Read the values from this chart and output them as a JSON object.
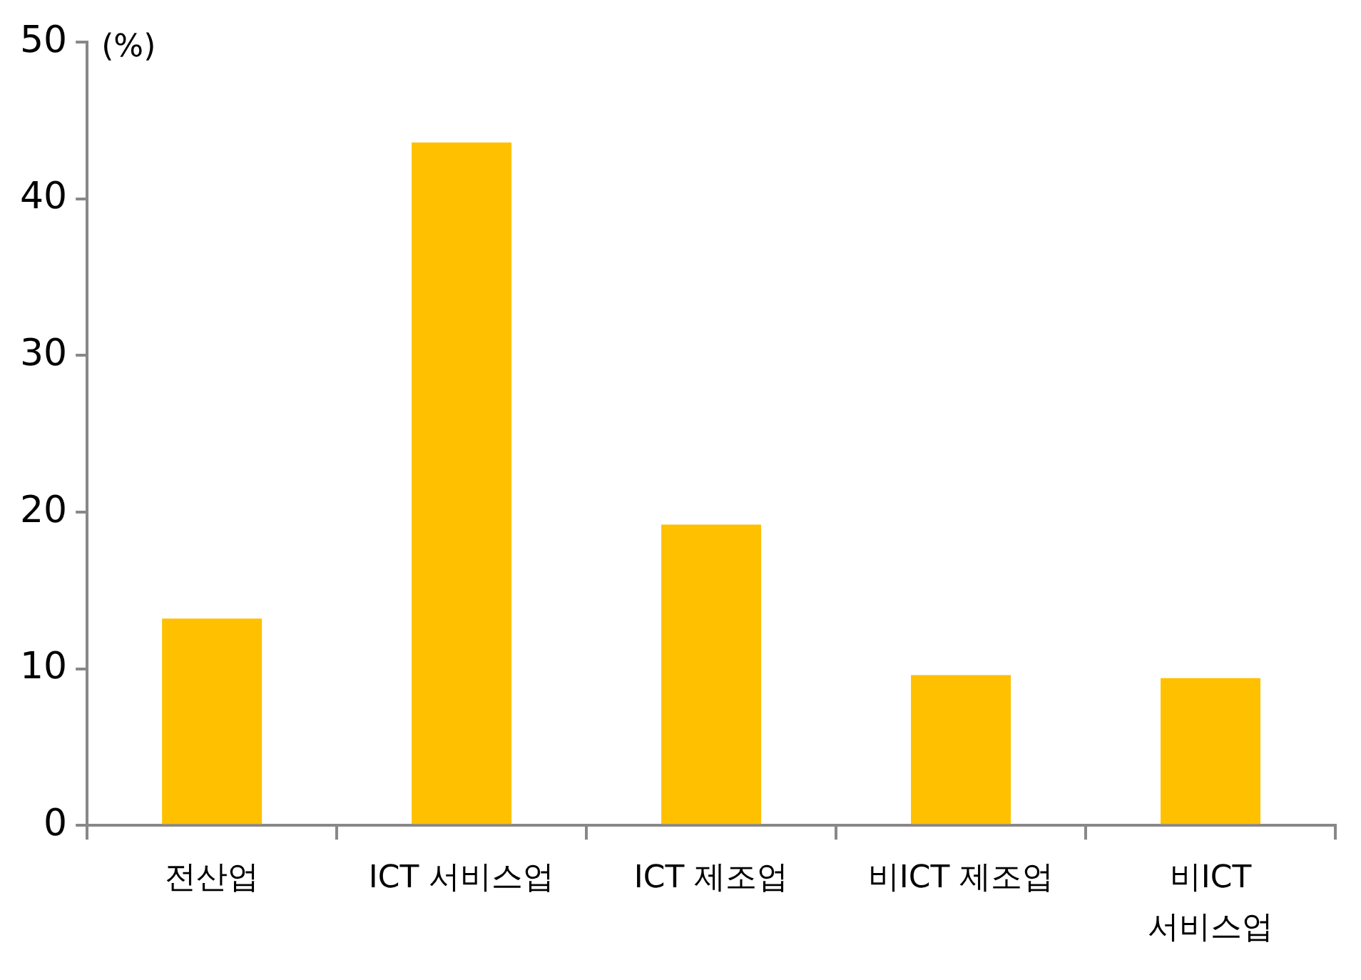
{
  "chart_data": {
    "type": "bar",
    "ylabel": "(%)",
    "categories": [
      "전산업",
      "ICT 서비스업",
      "ICT 제조업",
      "비ICT 제조업",
      "비ICT 서비스업"
    ],
    "values": [
      13.2,
      43.6,
      19.2,
      9.6,
      9.4
    ],
    "color": "#ffc000",
    "ylim": [
      0,
      50
    ],
    "yticks": [
      0,
      10,
      20,
      30,
      40,
      50
    ],
    "grid": false,
    "legend": false
  }
}
